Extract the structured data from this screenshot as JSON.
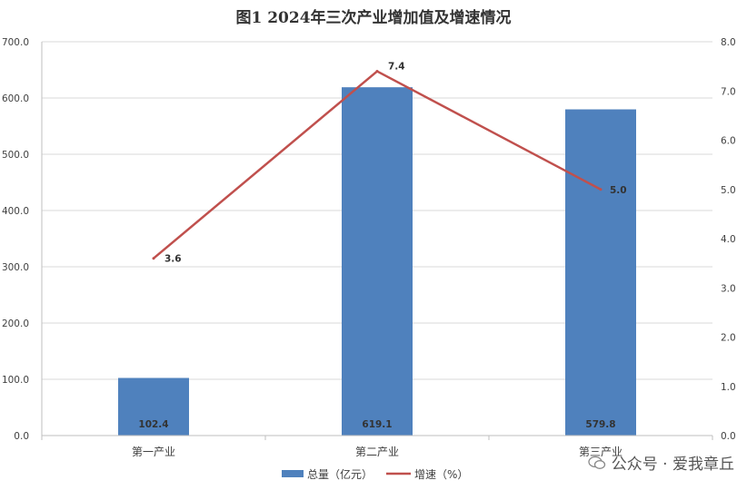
{
  "chart_data": {
    "type": "bar+line",
    "title": "图1   2024年三次产业增加值及增速情况",
    "categories": [
      "第一产业",
      "第二产业",
      "第三产业"
    ],
    "series": [
      {
        "name": "总量（亿元）",
        "kind": "bar",
        "axis": "left",
        "color": "#4F81BD",
        "values": [
          102.4,
          619.1,
          579.8
        ]
      },
      {
        "name": "增速（%）",
        "kind": "line",
        "axis": "right",
        "color": "#C0504D",
        "values": [
          3.6,
          7.4,
          5.0
        ]
      }
    ],
    "left_axis": {
      "ylim": [
        0,
        700
      ],
      "ticks": [
        "0.0",
        "100.0",
        "200.0",
        "300.0",
        "400.0",
        "500.0",
        "600.0",
        "700.0"
      ]
    },
    "right_axis": {
      "ylim": [
        0,
        8
      ],
      "ticks": [
        "0.0",
        "1.0",
        "2.0",
        "3.0",
        "4.0",
        "5.0",
        "6.0",
        "7.0",
        "8.0"
      ]
    },
    "bar_labels": [
      "102.4",
      "619.1",
      "579.8"
    ],
    "line_labels": [
      "3.6",
      "7.4",
      "5.0"
    ],
    "grid": true,
    "legend_position": "bottom"
  },
  "watermark": {
    "text": "公众号 · 爱我章丘"
  }
}
